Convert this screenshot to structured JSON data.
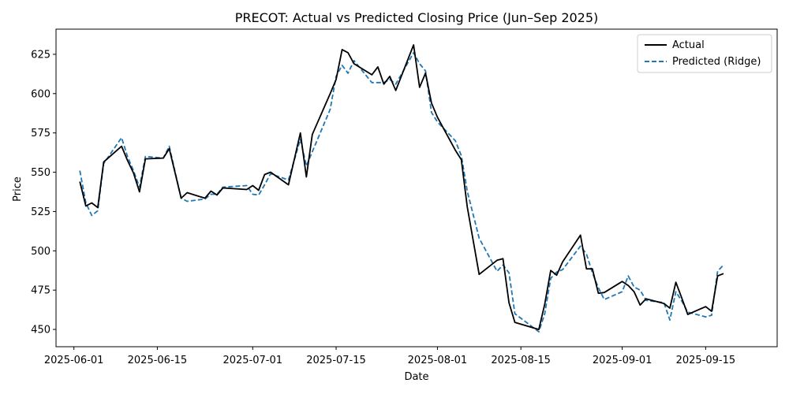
{
  "chart_data": {
    "type": "line",
    "title": "PRECOT: Actual vs Predicted Closing Price (Jun–Sep 2025)",
    "xlabel": "Date",
    "ylabel": "Price",
    "xlim": [
      "2025-05-29",
      "2025-09-27"
    ],
    "ylim": [
      439,
      641
    ],
    "x_ticks": [
      "2025-06-01",
      "2025-06-15",
      "2025-07-01",
      "2025-07-15",
      "2025-08-01",
      "2025-08-15",
      "2025-09-01",
      "2025-09-15"
    ],
    "y_ticks": [
      450,
      475,
      500,
      525,
      550,
      575,
      600,
      625
    ],
    "grid": false,
    "legend": {
      "placement": "top-right",
      "entries": [
        "Actual",
        "Predicted (Ridge)"
      ]
    },
    "series": [
      {
        "name": "Actual",
        "color": "#000000",
        "style": "solid",
        "points": [
          [
            "2025-06-02",
            544
          ],
          [
            "2025-06-03",
            528.5
          ],
          [
            "2025-06-04",
            530.5
          ],
          [
            "2025-06-05",
            527.5
          ],
          [
            "2025-06-06",
            556.5
          ],
          [
            "2025-06-09",
            566.5
          ],
          [
            "2025-06-10",
            557.5
          ],
          [
            "2025-06-11",
            549.5
          ],
          [
            "2025-06-12",
            537.5
          ],
          [
            "2025-06-13",
            558.5
          ],
          [
            "2025-06-16",
            559
          ],
          [
            "2025-06-17",
            565
          ],
          [
            "2025-06-19",
            533.5
          ],
          [
            "2025-06-20",
            537
          ],
          [
            "2025-06-23",
            533.5
          ],
          [
            "2025-06-24",
            538
          ],
          [
            "2025-06-25",
            535.5
          ],
          [
            "2025-06-26",
            540
          ],
          [
            "2025-06-30",
            539
          ],
          [
            "2025-07-01",
            541.5
          ],
          [
            "2025-07-02",
            538.5
          ],
          [
            "2025-07-03",
            548.5
          ],
          [
            "2025-07-04",
            550
          ],
          [
            "2025-07-07",
            542
          ],
          [
            "2025-07-09",
            575
          ],
          [
            "2025-07-10",
            547
          ],
          [
            "2025-07-11",
            574
          ],
          [
            "2025-07-14",
            600
          ],
          [
            "2025-07-15",
            609
          ],
          [
            "2025-07-16",
            628
          ],
          [
            "2025-07-17",
            626
          ],
          [
            "2025-07-18",
            619
          ],
          [
            "2025-07-21",
            612
          ],
          [
            "2025-07-22",
            617
          ],
          [
            "2025-07-23",
            606
          ],
          [
            "2025-07-24",
            611
          ],
          [
            "2025-07-25",
            602
          ],
          [
            "2025-07-28",
            631
          ],
          [
            "2025-07-29",
            604
          ],
          [
            "2025-07-30",
            613
          ],
          [
            "2025-07-31",
            594
          ],
          [
            "2025-08-01",
            585
          ],
          [
            "2025-08-04",
            564
          ],
          [
            "2025-08-05",
            558
          ],
          [
            "2025-08-06",
            528
          ],
          [
            "2025-08-08",
            485
          ],
          [
            "2025-08-11",
            494
          ],
          [
            "2025-08-12",
            495
          ],
          [
            "2025-08-13",
            467
          ],
          [
            "2025-08-14",
            454.5
          ],
          [
            "2025-08-18",
            450
          ],
          [
            "2025-08-19",
            466
          ],
          [
            "2025-08-20",
            487.5
          ],
          [
            "2025-08-21",
            484.5
          ],
          [
            "2025-08-22",
            493
          ],
          [
            "2025-08-25",
            510
          ],
          [
            "2025-08-26",
            488.5
          ],
          [
            "2025-08-27",
            488.5
          ],
          [
            "2025-08-28",
            473
          ],
          [
            "2025-08-29",
            473.5
          ],
          [
            "2025-09-01",
            480.5
          ],
          [
            "2025-09-02",
            478
          ],
          [
            "2025-09-03",
            474
          ],
          [
            "2025-09-04",
            465.5
          ],
          [
            "2025-09-05",
            469.5
          ],
          [
            "2025-09-08",
            466.5
          ],
          [
            "2025-09-09",
            463.5
          ],
          [
            "2025-09-10",
            480
          ],
          [
            "2025-09-11",
            470
          ],
          [
            "2025-09-12",
            459.5
          ],
          [
            "2025-09-15",
            464.5
          ],
          [
            "2025-09-16",
            461.5
          ],
          [
            "2025-09-17",
            484
          ],
          [
            "2025-09-18",
            485.5
          ]
        ]
      },
      {
        "name": "Predicted (Ridge)",
        "color": "#1f77b4",
        "style": "dashed",
        "points": [
          [
            "2025-06-02",
            551
          ],
          [
            "2025-06-03",
            530.5
          ],
          [
            "2025-06-04",
            522.5
          ],
          [
            "2025-06-05",
            525.5
          ],
          [
            "2025-06-06",
            555.5
          ],
          [
            "2025-06-09",
            572
          ],
          [
            "2025-06-10",
            560
          ],
          [
            "2025-06-11",
            551
          ],
          [
            "2025-06-12",
            540.5
          ],
          [
            "2025-06-13",
            560
          ],
          [
            "2025-06-16",
            559
          ],
          [
            "2025-06-17",
            566.5
          ],
          [
            "2025-06-19",
            533.5
          ],
          [
            "2025-06-20",
            531.5
          ],
          [
            "2025-06-23",
            533
          ],
          [
            "2025-06-24",
            536
          ],
          [
            "2025-06-25",
            536
          ],
          [
            "2025-06-26",
            540.5
          ],
          [
            "2025-06-30",
            541.5
          ],
          [
            "2025-07-01",
            536
          ],
          [
            "2025-07-02",
            535.5
          ],
          [
            "2025-07-03",
            542
          ],
          [
            "2025-07-04",
            549
          ],
          [
            "2025-07-07",
            545
          ],
          [
            "2025-07-09",
            571
          ],
          [
            "2025-07-10",
            554
          ],
          [
            "2025-07-11",
            563
          ],
          [
            "2025-07-14",
            590
          ],
          [
            "2025-07-15",
            611
          ],
          [
            "2025-07-16",
            618
          ],
          [
            "2025-07-17",
            613
          ],
          [
            "2025-07-18",
            621
          ],
          [
            "2025-07-21",
            607
          ],
          [
            "2025-07-22",
            607
          ],
          [
            "2025-07-23",
            607
          ],
          [
            "2025-07-24",
            609
          ],
          [
            "2025-07-25",
            606
          ],
          [
            "2025-07-28",
            626
          ],
          [
            "2025-07-29",
            619
          ],
          [
            "2025-07-30",
            614.5
          ],
          [
            "2025-07-31",
            588
          ],
          [
            "2025-08-01",
            582
          ],
          [
            "2025-08-04",
            570
          ],
          [
            "2025-08-05",
            560.5
          ],
          [
            "2025-08-06",
            538
          ],
          [
            "2025-08-08",
            508
          ],
          [
            "2025-08-11",
            487
          ],
          [
            "2025-08-12",
            491
          ],
          [
            "2025-08-13",
            486
          ],
          [
            "2025-08-14",
            460
          ],
          [
            "2025-08-18",
            448.5
          ],
          [
            "2025-08-19",
            460
          ],
          [
            "2025-08-20",
            482.5
          ],
          [
            "2025-08-21",
            486.5
          ],
          [
            "2025-08-22",
            488
          ],
          [
            "2025-08-25",
            503
          ],
          [
            "2025-08-26",
            498
          ],
          [
            "2025-08-27",
            486
          ],
          [
            "2025-08-28",
            476.5
          ],
          [
            "2025-08-29",
            469
          ],
          [
            "2025-09-01",
            474
          ],
          [
            "2025-09-02",
            484
          ],
          [
            "2025-09-03",
            477
          ],
          [
            "2025-09-04",
            475
          ],
          [
            "2025-09-05",
            468.5
          ],
          [
            "2025-09-08",
            467
          ],
          [
            "2025-09-09",
            456
          ],
          [
            "2025-09-10",
            474
          ],
          [
            "2025-09-11",
            468
          ],
          [
            "2025-09-12",
            461
          ],
          [
            "2025-09-15",
            458
          ],
          [
            "2025-09-16",
            459
          ],
          [
            "2025-09-17",
            487
          ],
          [
            "2025-09-18",
            491
          ]
        ]
      }
    ]
  }
}
